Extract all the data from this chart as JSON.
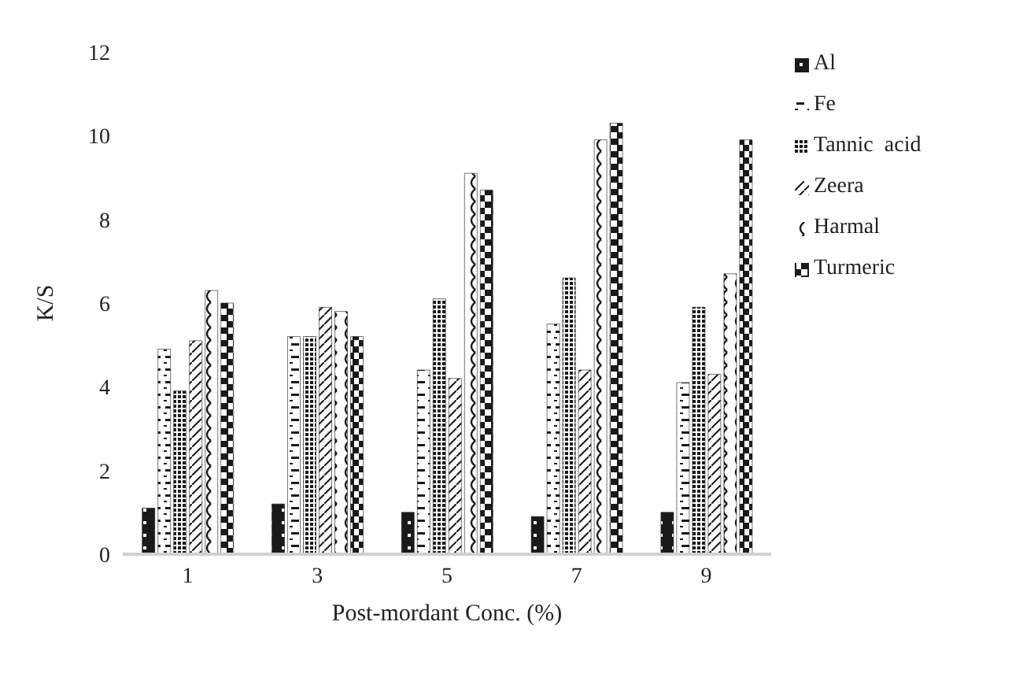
{
  "chart_data": {
    "type": "bar",
    "xlabel": "Post-mordant Conc. (%)",
    "ylabel": "K/S",
    "categories": [
      "1",
      "3",
      "5",
      "7",
      "9"
    ],
    "ylim": [
      0,
      12
    ],
    "yticks": [
      0,
      2,
      4,
      6,
      8,
      10,
      12
    ],
    "grid": false,
    "legend": "right",
    "series": [
      {
        "name": "Al",
        "color": "#1a1a1a",
        "values": [
          1.1,
          1.2,
          1.0,
          0.9,
          1.0
        ]
      },
      {
        "name": "Fe",
        "color": "#1a1a1a",
        "values": [
          4.9,
          5.2,
          4.4,
          5.5,
          4.1
        ]
      },
      {
        "name": "Tannic  acid",
        "color": "#1a1a1a",
        "values": [
          3.9,
          5.2,
          6.1,
          6.6,
          5.9
        ]
      },
      {
        "name": "Zeera",
        "color": "#1a1a1a",
        "values": [
          5.1,
          5.9,
          4.2,
          4.4,
          4.3
        ]
      },
      {
        "name": "Harmal",
        "color": "#1a1a1a",
        "values": [
          6.3,
          5.8,
          9.1,
          9.9,
          6.7
        ]
      },
      {
        "name": "Turmeric",
        "color": "#1a1a1a",
        "values": [
          6.0,
          5.2,
          8.7,
          10.3,
          9.9
        ]
      }
    ]
  }
}
